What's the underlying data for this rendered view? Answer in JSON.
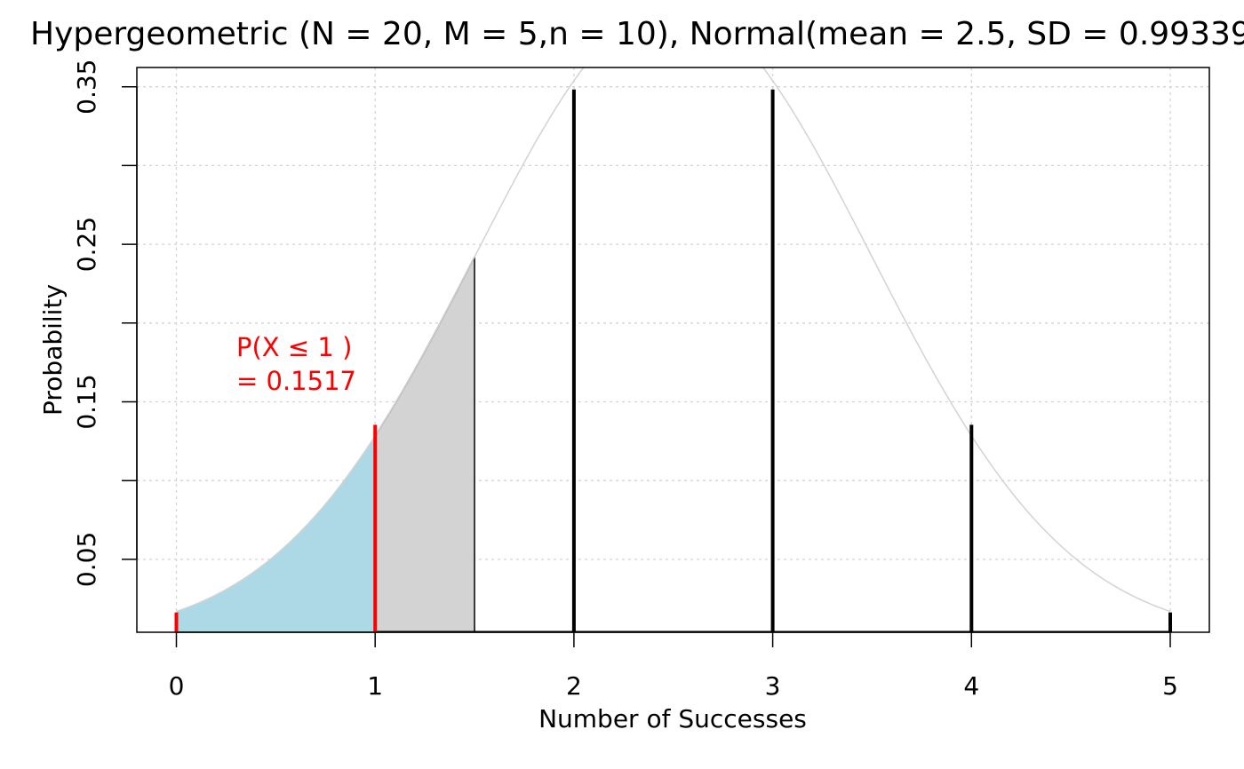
{
  "chart_data": {
    "type": "bar",
    "title": "Hypergeometric (N = 20, M = 5,n = 10), Normal(mean = 2.5,   SD = 0.99339",
    "xlabel": "Number of Successes",
    "ylabel": "Probability",
    "xlim": [
      -0.2,
      5.2
    ],
    "ylim": [
      0,
      0.36
    ],
    "x_ticks": [
      "0",
      "1",
      "2",
      "3",
      "4",
      "5"
    ],
    "y_ticks": [
      "0.05",
      "0.15",
      "0.25",
      "0.35"
    ],
    "y_minor_ticks": [
      0.1,
      0.2,
      0.3
    ],
    "grid": true,
    "x": [
      0,
      1,
      2,
      3,
      4,
      5
    ],
    "values": [
      0.0163,
      0.1354,
      0.3483,
      0.3483,
      0.1354,
      0.0163
    ],
    "highlighted_x": [
      0,
      1
    ],
    "highlight_color": "#ff0000",
    "bar_color": "#000000",
    "normal_curve": {
      "mean": 2.5,
      "sd": 0.99339,
      "color": "#d3d3d3"
    },
    "shaded_region": {
      "from": 0,
      "to": 1,
      "color": "#add8e6"
    },
    "continuity_region": {
      "from": 1,
      "to": 1.5,
      "color": "#d3d3d3"
    },
    "annotation": {
      "line1": "P(X ≤ 1 )",
      "line2": "=  0.1517",
      "color": "#ff0000"
    }
  }
}
